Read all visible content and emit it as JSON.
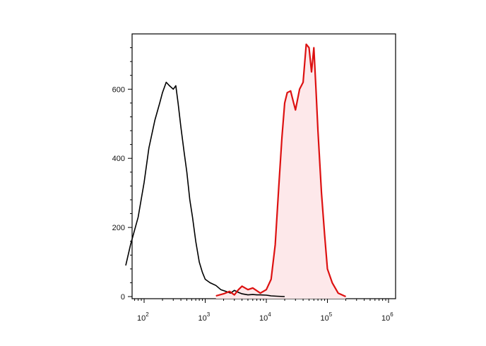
{
  "chart_data": {
    "type": "area",
    "title": "",
    "xlabel": "",
    "ylabel": "",
    "x_scale": "log",
    "xlim": [
      50,
      1000000
    ],
    "ylim": [
      0,
      760
    ],
    "grid": false,
    "legend": "none",
    "y_ticks": [
      {
        "value": 0,
        "label": "0"
      },
      {
        "value": 200,
        "label": "200"
      },
      {
        "value": 400,
        "label": "400"
      },
      {
        "value": 600,
        "label": "600"
      }
    ],
    "x_ticks": [
      {
        "value": 100,
        "base": "10",
        "exp": "2"
      },
      {
        "value": 1000,
        "base": "10",
        "exp": "3"
      },
      {
        "value": 10000,
        "base": "10",
        "exp": "4"
      },
      {
        "value": 100000,
        "base": "10",
        "exp": "5"
      },
      {
        "value": 1000000,
        "base": "10",
        "exp": "6"
      }
    ],
    "series": [
      {
        "color": "#000000",
        "fill": "none",
        "x": [
          50,
          60,
          80,
          100,
          120,
          150,
          180,
          200,
          230,
          260,
          300,
          330,
          360,
          400,
          450,
          500,
          560,
          620,
          700,
          800,
          900,
          1000,
          1200,
          1500,
          1800,
          2200,
          2600,
          3000,
          3500,
          4000,
          5000,
          6000,
          7000,
          8000,
          10000,
          12000,
          15000,
          20000
        ],
        "y": [
          90,
          150,
          230,
          330,
          430,
          510,
          560,
          590,
          620,
          610,
          600,
          610,
          560,
          490,
          420,
          360,
          280,
          230,
          160,
          100,
          70,
          50,
          40,
          32,
          20,
          15,
          10,
          18,
          12,
          8,
          5,
          6,
          5,
          5,
          4,
          2,
          1,
          0
        ]
      },
      {
        "color": "#dd1111",
        "fill": "#fde8ea",
        "x": [
          1500,
          2000,
          2500,
          3000,
          3500,
          4000,
          5000,
          6000,
          8000,
          10000,
          12000,
          14000,
          16000,
          18000,
          20000,
          22000,
          25000,
          28000,
          30000,
          35000,
          40000,
          45000,
          50000,
          55000,
          60000,
          65000,
          70000,
          80000,
          90000,
          100000,
          120000,
          150000,
          200000
        ],
        "y": [
          2,
          8,
          15,
          5,
          20,
          30,
          20,
          25,
          10,
          20,
          50,
          150,
          320,
          460,
          560,
          590,
          595,
          560,
          540,
          600,
          620,
          730,
          720,
          650,
          720,
          600,
          480,
          300,
          180,
          80,
          40,
          10,
          0
        ]
      }
    ]
  }
}
